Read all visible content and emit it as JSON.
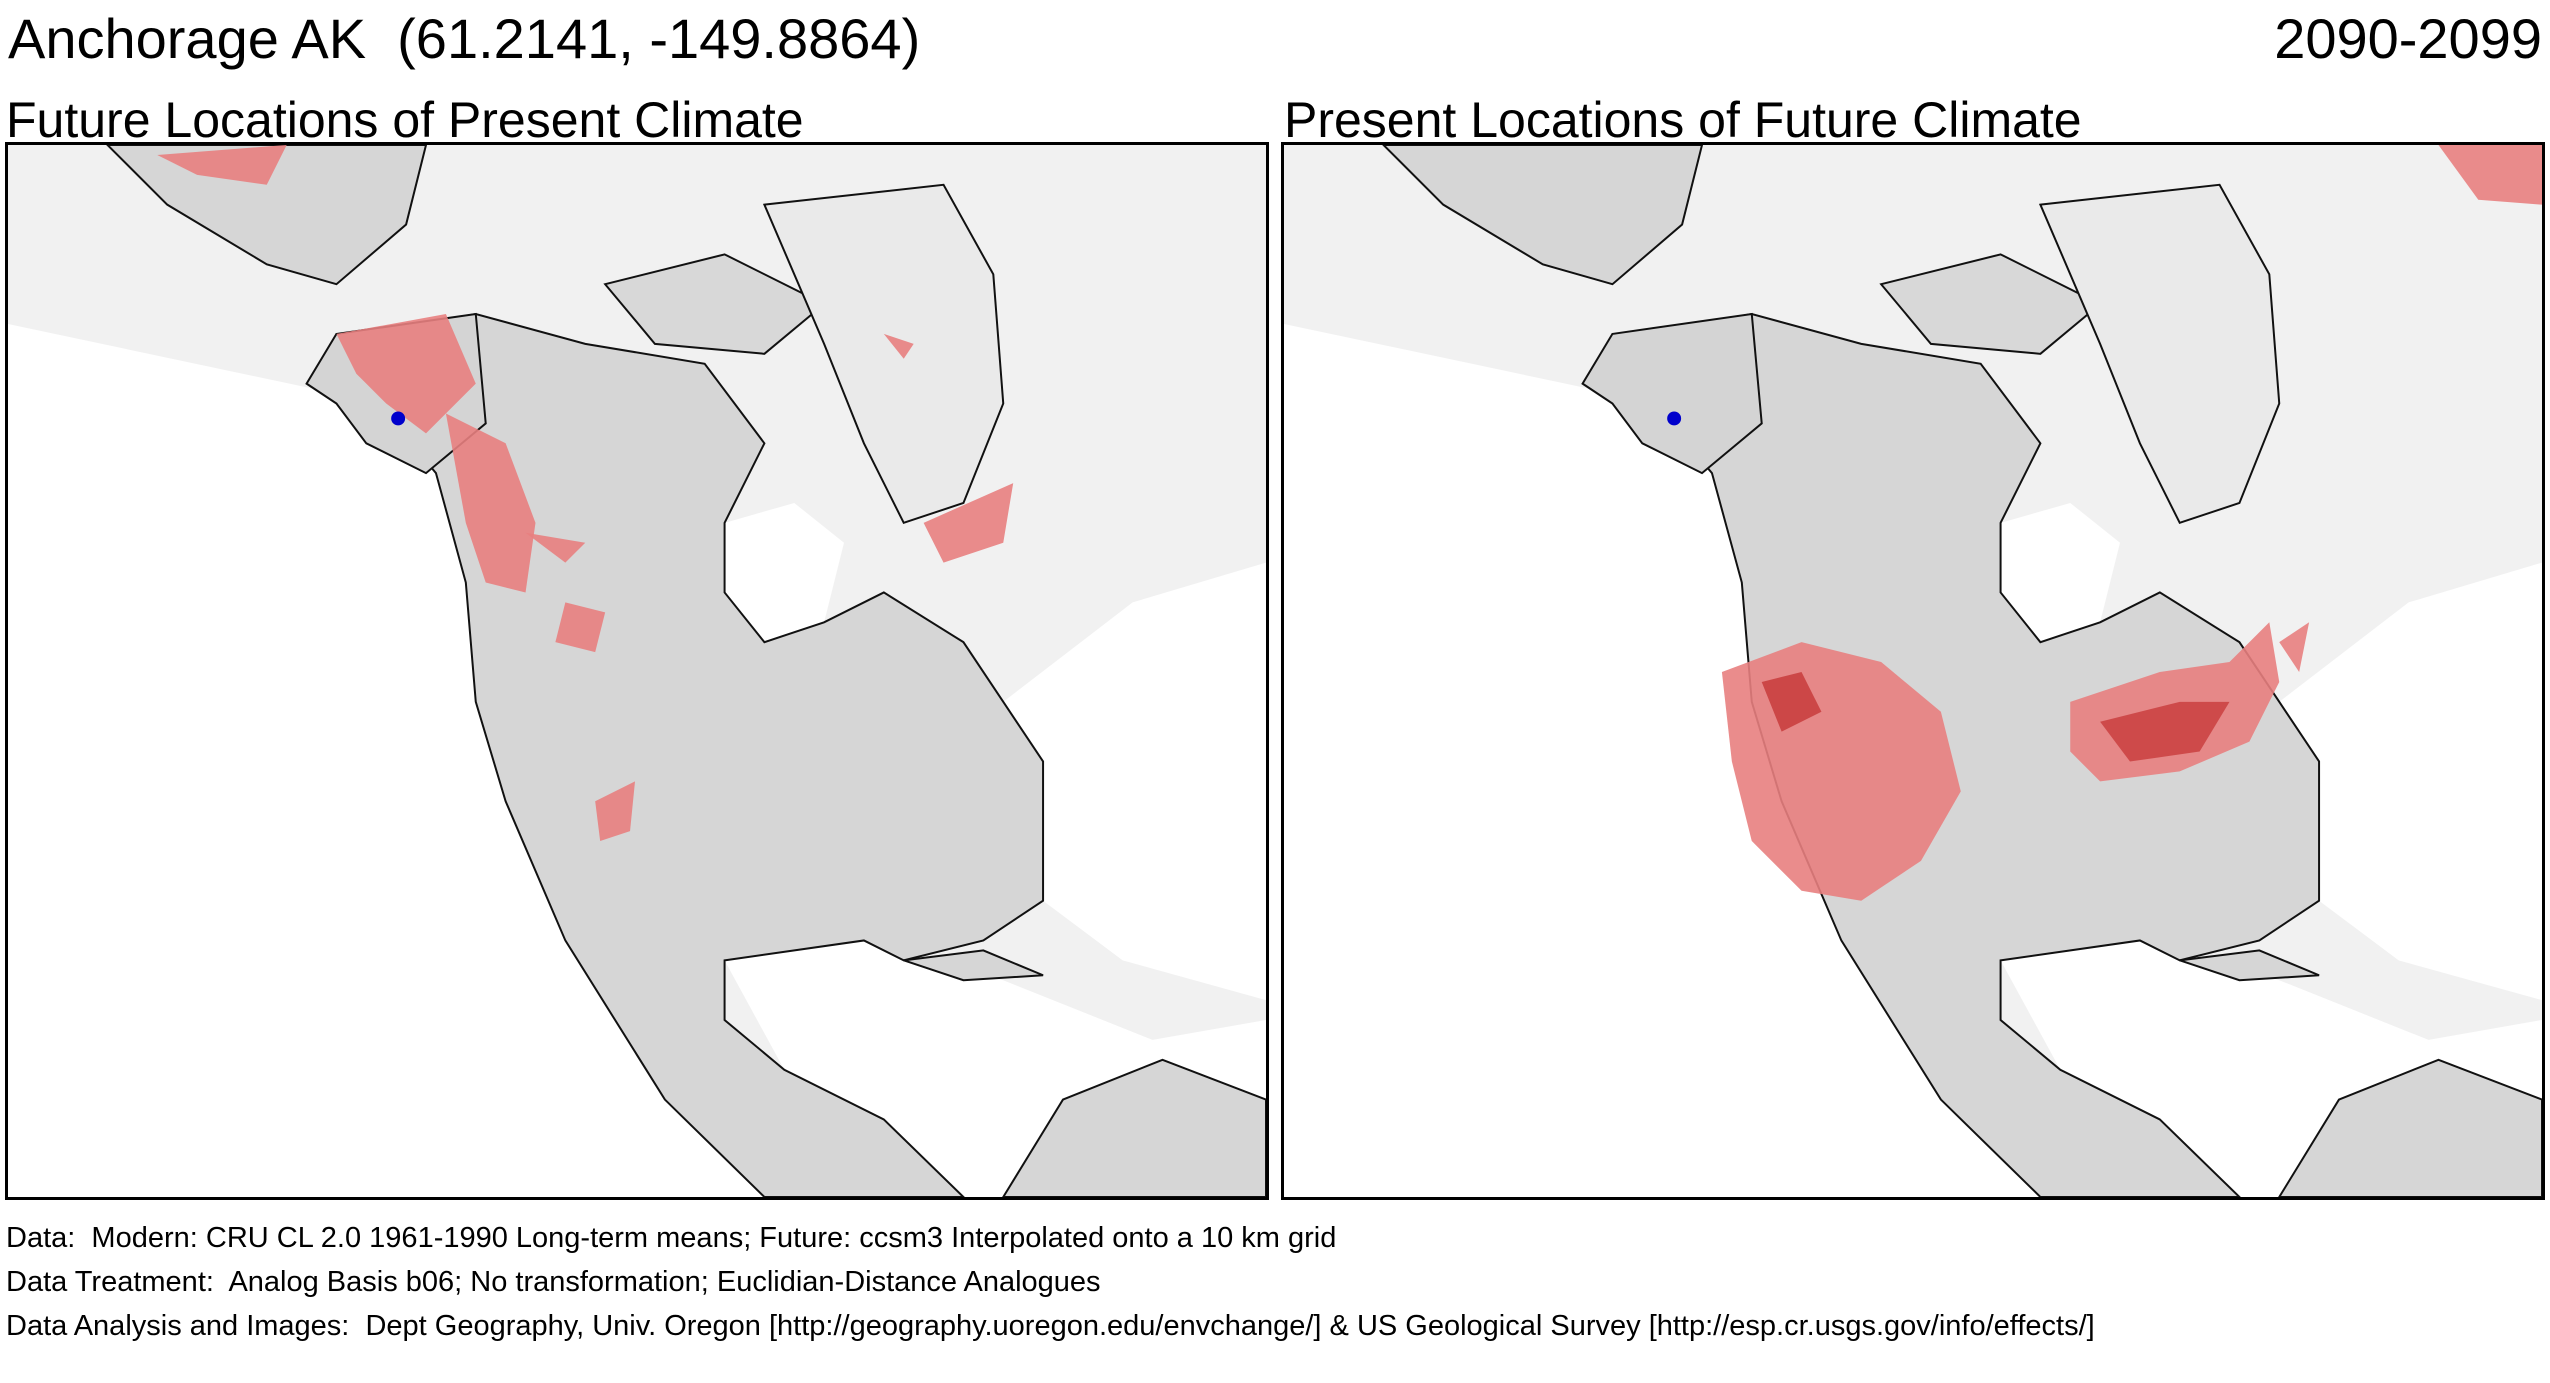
{
  "header": {
    "location_title": "Anchorage AK  (61.2141, -149.8864)",
    "period": "2090-2099"
  },
  "panels": [
    {
      "title": "Future Locations of Present Climate"
    },
    {
      "title": "Present Locations of Future Climate"
    }
  ],
  "colors": {
    "ocean": "#ffffff",
    "land": "#d6d6d6",
    "analog_area": "#e88080",
    "analog_strong": "#c94040",
    "site_marker": "#0000cc",
    "background": "#f1f1f1"
  },
  "footer": {
    "data_line": "Data:  Modern: CRU CL 2.0 1961-1990 Long-term means; Future: ccsm3 Interpolated onto a 10 km grid",
    "treatment_line": "Data Treatment:  Analog Basis b06; No transformation; Euclidian-Distance Analogues",
    "analysis_line": "Data Analysis and Images:  Dept Geography, Univ. Oregon [http://geography.uoregon.edu/envchange/] & US Geological Survey [http://esp.cr.usgs.gov/info/effects/]"
  }
}
